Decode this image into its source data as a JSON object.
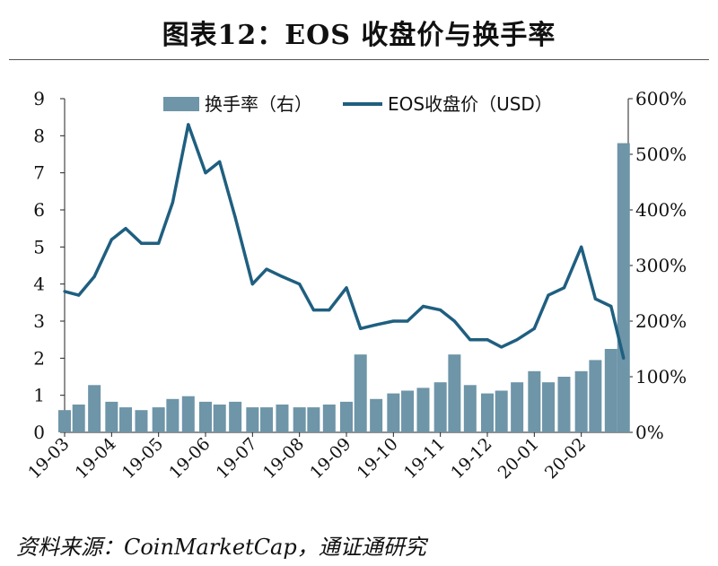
{
  "title": "图表12：EOS 收盘价与换手率",
  "source": "资料来源：CoinMarketCap，通证通研究",
  "chart_data": {
    "type": "bar+line",
    "x_tick_labels": [
      "19-03",
      "19-04",
      "19-05",
      "19-06",
      "19-07",
      "19-08",
      "19-09",
      "19-10",
      "19-11",
      "19-12",
      "20-01",
      "20-02"
    ],
    "left_axis": {
      "ylim": [
        0,
        9
      ],
      "ticks": [
        "0",
        "1",
        "2",
        "3",
        "4",
        "5",
        "6",
        "7",
        "8",
        "9"
      ]
    },
    "right_axis": {
      "ylim": [
        0,
        600
      ],
      "ticks": [
        "0%",
        "100%",
        "200%",
        "300%",
        "400%",
        "500%",
        "600%"
      ]
    },
    "legend": {
      "placement": "top",
      "bar_label": "换手率（右）",
      "line_label": "EOS收盘价（USD）"
    },
    "colors": {
      "bar": "#6e95a8",
      "line": "#1f5f80"
    },
    "line_series": {
      "name": "EOS收盘价（USD）",
      "x": [
        "19-03",
        "19-03-10",
        "19-03-20",
        "19-04",
        "19-04-10",
        "19-04-20",
        "19-05",
        "19-05-10",
        "19-05-20",
        "19-06",
        "19-06-10",
        "19-06-20",
        "19-07",
        "19-07-10",
        "19-07-20",
        "19-08",
        "19-08-10",
        "19-08-20",
        "19-09",
        "19-09-10",
        "19-09-20",
        "19-10",
        "19-10-10",
        "19-10-20",
        "19-11",
        "19-11-10",
        "19-11-20",
        "19-12",
        "19-12-10",
        "19-12-20",
        "20-01",
        "20-01-10",
        "20-01-20",
        "20-02",
        "20-02-10",
        "20-02-20",
        "20-02-28"
      ],
      "values": [
        3.8,
        3.7,
        4.2,
        5.2,
        5.5,
        5.1,
        5.1,
        6.2,
        8.3,
        7.0,
        7.3,
        5.8,
        4.0,
        4.4,
        4.2,
        4.0,
        3.3,
        3.3,
        3.9,
        2.8,
        2.9,
        3.0,
        3.0,
        3.4,
        3.3,
        3.0,
        2.5,
        2.5,
        2.3,
        2.5,
        2.8,
        3.7,
        3.9,
        5.0,
        3.6,
        3.4,
        2.0
      ]
    },
    "bar_series": {
      "name": "换手率（右）",
      "x": [
        "19-03",
        "19-03-10",
        "19-03-20",
        "19-04",
        "19-04-10",
        "19-04-20",
        "19-05",
        "19-05-10",
        "19-05-20",
        "19-06",
        "19-06-10",
        "19-06-20",
        "19-07",
        "19-07-10",
        "19-07-20",
        "19-08",
        "19-08-10",
        "19-08-20",
        "19-09",
        "19-09-10",
        "19-09-20",
        "19-10",
        "19-10-10",
        "19-10-20",
        "19-11",
        "19-11-10",
        "19-11-20",
        "19-12",
        "19-12-10",
        "19-12-20",
        "20-01",
        "20-01-10",
        "20-01-20",
        "20-02",
        "20-02-10",
        "20-02-20",
        "20-02-28"
      ],
      "values": [
        40,
        50,
        85,
        55,
        45,
        40,
        45,
        60,
        65,
        55,
        50,
        55,
        45,
        45,
        50,
        45,
        45,
        50,
        55,
        140,
        60,
        70,
        75,
        80,
        90,
        140,
        85,
        70,
        75,
        90,
        110,
        90,
        100,
        110,
        130,
        150,
        520
      ]
    }
  }
}
